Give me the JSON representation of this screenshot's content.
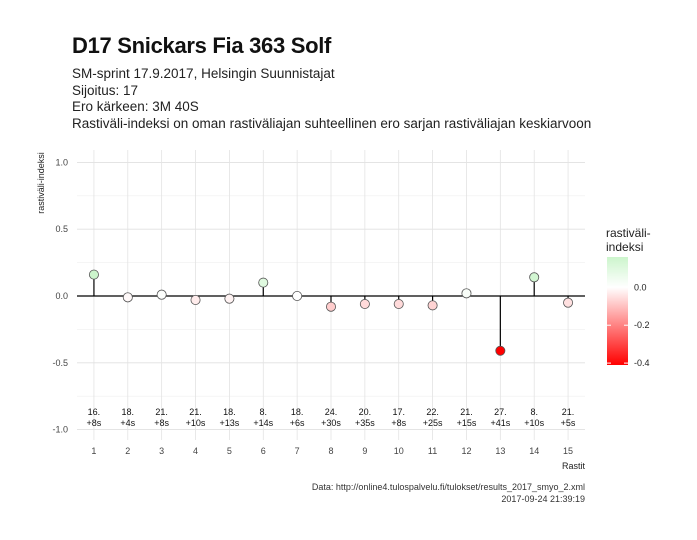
{
  "title": "D17 Snickars Fia 363 Solf",
  "subtitle_lines": [
    "SM-sprint 17.9.2017, Helsingin Suunnistajat",
    "Sijoitus: 17",
    "Ero kärkeen: 3M 40S",
    "Rastiväli-indeksi on oman rastiväliajan suhteellinen ero sarjan rastiväliajan keskiarvoon"
  ],
  "caption_lines": [
    "Data: http://online4.tulospalvelu.fi/tulokset/results_2017_smyo_2.xml",
    "2017-09-24 21:39:19"
  ],
  "chart_data": {
    "type": "scatter",
    "style": "lollipop",
    "xlabel": "Rastit",
    "ylabel": "rastiväli-indeksi",
    "ylim": [
      -1.0,
      1.0
    ],
    "xlim": [
      0.5,
      15.5
    ],
    "yticks": [
      "1.0",
      "0.5",
      "0.0",
      "-0.5",
      "-1.0"
    ],
    "ytick_values": [
      1.0,
      0.5,
      0.0,
      -0.5,
      -1.0
    ],
    "x": [
      1,
      2,
      3,
      4,
      5,
      6,
      7,
      8,
      9,
      10,
      11,
      12,
      13,
      14,
      15
    ],
    "values": [
      0.16,
      -0.01,
      0.01,
      -0.03,
      -0.02,
      0.1,
      0.0,
      -0.08,
      -0.06,
      -0.06,
      -0.07,
      0.02,
      -0.41,
      0.14,
      -0.05
    ],
    "annotations": [
      [
        "16.",
        "+8s"
      ],
      [
        "18.",
        "+4s"
      ],
      [
        "21.",
        "+8s"
      ],
      [
        "21.",
        "+10s"
      ],
      [
        "18.",
        "+13s"
      ],
      [
        "8.",
        "+14s"
      ],
      [
        "18.",
        "+6s"
      ],
      [
        "24.",
        "+30s"
      ],
      [
        "20.",
        "+35s"
      ],
      [
        "17.",
        "+8s"
      ],
      [
        "22.",
        "+25s"
      ],
      [
        "21.",
        "+15s"
      ],
      [
        "27.",
        "+41s"
      ],
      [
        "8.",
        "+10s"
      ],
      [
        "21.",
        "+5s"
      ]
    ],
    "grid": true,
    "legend": {
      "title_lines": [
        "rastiväli-",
        "indeksi"
      ],
      "labels": [
        "0.0",
        "-0.2",
        "-0.4"
      ],
      "label_values": [
        0.0,
        -0.2,
        -0.4
      ],
      "range": [
        -0.41,
        0.16
      ],
      "placement": "right"
    },
    "colors": {
      "positive": "#ccf5cc",
      "neutral": "#ffffff",
      "negative": "#ff0000",
      "zero_line": "#000000",
      "grid": "#e3e3e3"
    }
  }
}
